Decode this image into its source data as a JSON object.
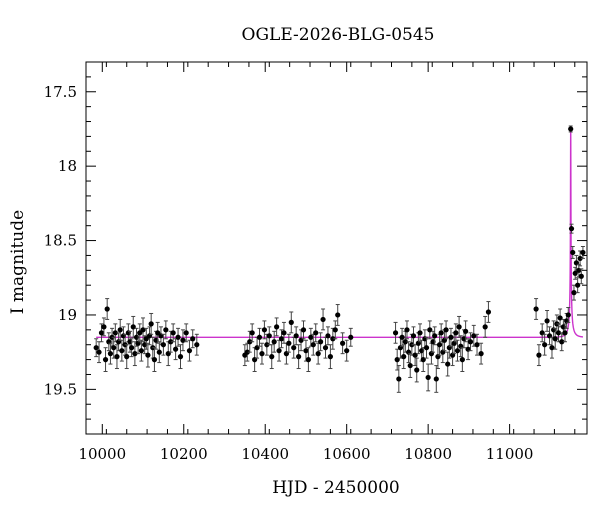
{
  "chart_data": {
    "type": "scatter",
    "title": "OGLE-2026-BLG-0545",
    "xlabel": "HJD - 2450000",
    "ylabel": "I magnitude",
    "xlim": [
      9960,
      11190
    ],
    "ylim": [
      19.8,
      17.3
    ],
    "y_axis_inverted": true,
    "xticks": [
      10000,
      10200,
      10400,
      10600,
      10800,
      11000
    ],
    "yticks": [
      17.5,
      18,
      18.5,
      19,
      19.5
    ],
    "ytick_labels": [
      "17.5",
      "18",
      "18.5",
      "19",
      "19.5"
    ],
    "model_color": "#cc33cc",
    "marker_color": "#000000",
    "baseline_magnitude": 19.15,
    "peak": {
      "x": 11150,
      "y": 17.75
    },
    "series": [
      {
        "type": "errorbar",
        "points": [
          [
            9985,
            19.22,
            0.06
          ],
          [
            9992,
            19.25,
            0.07
          ],
          [
            9998,
            19.12,
            0.06
          ],
          [
            10004,
            19.08,
            0.06
          ],
          [
            10008,
            19.3,
            0.08
          ],
          [
            10012,
            18.96,
            0.07
          ],
          [
            10016,
            19.18,
            0.06
          ],
          [
            10020,
            19.26,
            0.07
          ],
          [
            10024,
            19.15,
            0.06
          ],
          [
            10028,
            19.22,
            0.07
          ],
          [
            10032,
            19.12,
            0.06
          ],
          [
            10036,
            19.28,
            0.08
          ],
          [
            10040,
            19.18,
            0.06
          ],
          [
            10044,
            19.1,
            0.07
          ],
          [
            10048,
            19.24,
            0.07
          ],
          [
            10052,
            19.14,
            0.06
          ],
          [
            10056,
            19.2,
            0.07
          ],
          [
            10060,
            19.28,
            0.08
          ],
          [
            10064,
            19.12,
            0.06
          ],
          [
            10068,
            19.18,
            0.07
          ],
          [
            10072,
            19.22,
            0.06
          ],
          [
            10076,
            19.08,
            0.07
          ],
          [
            10080,
            19.26,
            0.08
          ],
          [
            10084,
            19.15,
            0.06
          ],
          [
            10088,
            19.19,
            0.07
          ],
          [
            10092,
            19.12,
            0.06
          ],
          [
            10096,
            19.24,
            0.07
          ],
          [
            10100,
            19.1,
            0.08
          ],
          [
            10104,
            19.2,
            0.06
          ],
          [
            10108,
            19.16,
            0.07
          ],
          [
            10112,
            19.27,
            0.08
          ],
          [
            10116,
            19.14,
            0.06
          ],
          [
            10120,
            19.06,
            0.07
          ],
          [
            10124,
            19.22,
            0.07
          ],
          [
            10128,
            19.3,
            0.08
          ],
          [
            10132,
            19.17,
            0.06
          ],
          [
            10136,
            19.12,
            0.07
          ],
          [
            10140,
            19.25,
            0.07
          ],
          [
            10144,
            19.14,
            0.06
          ],
          [
            10150,
            19.2,
            0.07
          ],
          [
            10156,
            19.1,
            0.06
          ],
          [
            10162,
            19.26,
            0.08
          ],
          [
            10168,
            19.18,
            0.07
          ],
          [
            10174,
            19.12,
            0.06
          ],
          [
            10180,
            19.23,
            0.07
          ],
          [
            10186,
            19.15,
            0.06
          ],
          [
            10192,
            19.28,
            0.08
          ],
          [
            10198,
            19.17,
            0.07
          ],
          [
            10206,
            19.12,
            0.06
          ],
          [
            10214,
            19.24,
            0.07
          ],
          [
            10222,
            19.16,
            0.06
          ],
          [
            10232,
            19.2,
            0.07
          ],
          [
            10350,
            19.27,
            0.07
          ],
          [
            10356,
            19.25,
            0.06
          ],
          [
            10362,
            19.18,
            0.07
          ],
          [
            10368,
            19.12,
            0.06
          ],
          [
            10374,
            19.3,
            0.08
          ],
          [
            10380,
            19.22,
            0.07
          ],
          [
            10386,
            19.15,
            0.06
          ],
          [
            10392,
            19.26,
            0.07
          ],
          [
            10398,
            19.1,
            0.06
          ],
          [
            10404,
            19.2,
            0.07
          ],
          [
            10410,
            19.14,
            0.06
          ],
          [
            10416,
            19.28,
            0.08
          ],
          [
            10422,
            19.18,
            0.07
          ],
          [
            10428,
            19.08,
            0.06
          ],
          [
            10434,
            19.24,
            0.07
          ],
          [
            10440,
            19.16,
            0.06
          ],
          [
            10446,
            19.12,
            0.07
          ],
          [
            10452,
            19.26,
            0.07
          ],
          [
            10458,
            19.19,
            0.06
          ],
          [
            10464,
            19.05,
            0.07
          ],
          [
            10470,
            19.22,
            0.07
          ],
          [
            10476,
            19.14,
            0.06
          ],
          [
            10482,
            19.28,
            0.08
          ],
          [
            10488,
            19.17,
            0.07
          ],
          [
            10494,
            19.1,
            0.06
          ],
          [
            10500,
            19.24,
            0.07
          ],
          [
            10506,
            19.3,
            0.08
          ],
          [
            10512,
            19.15,
            0.06
          ],
          [
            10518,
            19.2,
            0.07
          ],
          [
            10524,
            19.12,
            0.06
          ],
          [
            10530,
            19.26,
            0.07
          ],
          [
            10536,
            19.18,
            0.06
          ],
          [
            10542,
            19.03,
            0.07
          ],
          [
            10548,
            19.22,
            0.07
          ],
          [
            10554,
            19.14,
            0.06
          ],
          [
            10560,
            19.28,
            0.08
          ],
          [
            10566,
            19.16,
            0.07
          ],
          [
            10572,
            19.1,
            0.06
          ],
          [
            10578,
            19.0,
            0.07
          ],
          [
            10590,
            19.19,
            0.07
          ],
          [
            10600,
            19.24,
            0.07
          ],
          [
            10610,
            19.15,
            0.06
          ],
          [
            10720,
            19.12,
            0.07
          ],
          [
            10724,
            19.3,
            0.07
          ],
          [
            10728,
            19.43,
            0.09
          ],
          [
            10732,
            19.22,
            0.07
          ],
          [
            10736,
            19.15,
            0.06
          ],
          [
            10740,
            19.28,
            0.08
          ],
          [
            10744,
            19.18,
            0.07
          ],
          [
            10748,
            19.1,
            0.06
          ],
          [
            10752,
            19.25,
            0.07
          ],
          [
            10756,
            19.34,
            0.08
          ],
          [
            10760,
            19.2,
            0.07
          ],
          [
            10764,
            19.14,
            0.06
          ],
          [
            10768,
            19.27,
            0.07
          ],
          [
            10772,
            19.37,
            0.08
          ],
          [
            10776,
            19.19,
            0.07
          ],
          [
            10780,
            19.12,
            0.06
          ],
          [
            10784,
            19.24,
            0.07
          ],
          [
            10788,
            19.3,
            0.08
          ],
          [
            10792,
            19.16,
            0.06
          ],
          [
            10796,
            19.22,
            0.07
          ],
          [
            10800,
            19.42,
            0.09
          ],
          [
            10804,
            19.1,
            0.06
          ],
          [
            10808,
            19.26,
            0.07
          ],
          [
            10812,
            19.18,
            0.07
          ],
          [
            10816,
            19.14,
            0.06
          ],
          [
            10820,
            19.43,
            0.09
          ],
          [
            10824,
            19.28,
            0.08
          ],
          [
            10828,
            19.2,
            0.07
          ],
          [
            10832,
            19.12,
            0.06
          ],
          [
            10836,
            19.25,
            0.07
          ],
          [
            10840,
            19.17,
            0.07
          ],
          [
            10844,
            19.1,
            0.06
          ],
          [
            10848,
            19.33,
            0.08
          ],
          [
            10852,
            19.22,
            0.07
          ],
          [
            10856,
            19.15,
            0.06
          ],
          [
            10860,
            19.27,
            0.07
          ],
          [
            10864,
            19.19,
            0.07
          ],
          [
            10868,
            19.12,
            0.06
          ],
          [
            10872,
            19.24,
            0.07
          ],
          [
            10876,
            19.08,
            0.07
          ],
          [
            10880,
            19.21,
            0.07
          ],
          [
            10884,
            19.3,
            0.08
          ],
          [
            10888,
            19.16,
            0.06
          ],
          [
            10892,
            19.11,
            0.07
          ],
          [
            10898,
            19.23,
            0.07
          ],
          [
            10904,
            19.18,
            0.06
          ],
          [
            10912,
            19.14,
            0.07
          ],
          [
            10920,
            19.2,
            0.07
          ],
          [
            10930,
            19.26,
            0.07
          ],
          [
            10940,
            19.08,
            0.07
          ],
          [
            10948,
            18.98,
            0.07
          ],
          [
            11065,
            18.96,
            0.07
          ],
          [
            11072,
            19.27,
            0.07
          ],
          [
            11080,
            19.12,
            0.06
          ],
          [
            11086,
            19.2,
            0.07
          ],
          [
            11092,
            19.04,
            0.07
          ],
          [
            11098,
            19.14,
            0.06
          ],
          [
            11104,
            19.22,
            0.07
          ],
          [
            11108,
            19.1,
            0.06
          ],
          [
            11112,
            19.16,
            0.07
          ],
          [
            11116,
            19.06,
            0.06
          ],
          [
            11120,
            19.12,
            0.06
          ],
          [
            11124,
            19.02,
            0.06
          ],
          [
            11128,
            19.18,
            0.06
          ],
          [
            11132,
            19.08,
            0.05
          ],
          [
            11136,
            19.12,
            0.06
          ],
          [
            11140,
            19.04,
            0.05
          ],
          [
            11144,
            19.0,
            0.05
          ],
          [
            11150,
            17.75,
            0.02
          ],
          [
            11152,
            18.42,
            0.03
          ],
          [
            11155,
            18.58,
            0.04
          ],
          [
            11158,
            18.85,
            0.05
          ],
          [
            11161,
            18.72,
            0.04
          ],
          [
            11164,
            18.65,
            0.05
          ],
          [
            11167,
            18.8,
            0.05
          ],
          [
            11170,
            18.7,
            0.04
          ],
          [
            11173,
            18.62,
            0.05
          ],
          [
            11176,
            18.74,
            0.05
          ],
          [
            11180,
            18.58,
            0.04
          ]
        ]
      }
    ]
  }
}
